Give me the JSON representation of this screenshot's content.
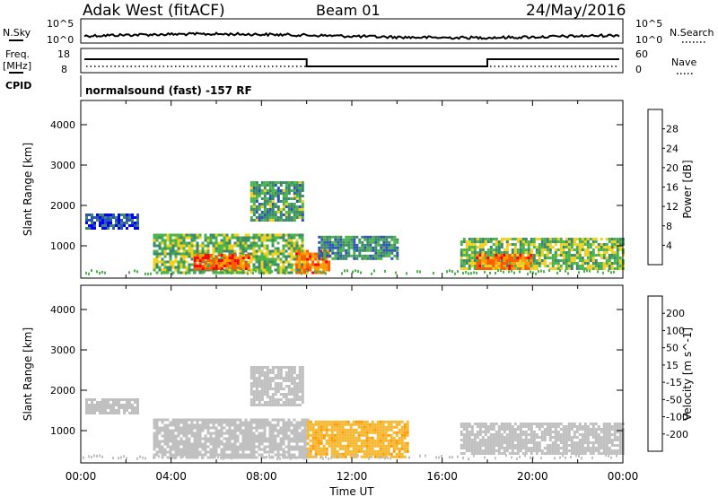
{
  "header": {
    "station": "Adak West (fitACF)",
    "beam": "Beam 01",
    "date": "24/May/2016"
  },
  "top_strip": {
    "nsky_label": "N.Sky",
    "nsearch_label": "N.Search",
    "nsky_ticks": [
      "10^5",
      "10^0"
    ],
    "nsearch_ticks": [
      "10^5",
      "10^0"
    ],
    "freq_label_line1": "Freq.",
    "freq_label_line2": "[MHz]",
    "freq_ticks": [
      "18",
      "8"
    ],
    "nave_label": "Nave",
    "nave_ticks": [
      "60",
      "0"
    ],
    "cpid_label": "CPID",
    "cpid_text": "normalsound (fast) -157 RF"
  },
  "colorbars": {
    "power": {
      "label": "Power [dB]",
      "ticks": [
        "4",
        "8",
        "12",
        "16",
        "20",
        "24",
        "28"
      ],
      "colors": [
        "#0000ff",
        "#2a55b5",
        "#3c8a6a",
        "#4cb24c",
        "#f0d020",
        "#ff9a00",
        "#ff5a00",
        "#ff0000"
      ]
    },
    "velocity": {
      "label": "Velocity [m s^-1]",
      "ticks": [
        "-200",
        "-100",
        "-50",
        "-15",
        "15",
        "50",
        "100",
        "200"
      ],
      "colors": [
        "#ff0000",
        "#ff6a00",
        "#ff9a00",
        "#f5b830",
        "#c0c0c0",
        "#c0c0c0",
        "#60c040",
        "#2a8a6a",
        "#2a55b5",
        "#0000ff"
      ]
    }
  },
  "x_axis": {
    "title": "Time UT",
    "ticks": [
      "00:00",
      "04:00",
      "08:00",
      "12:00",
      "16:00",
      "20:00",
      "00:00"
    ]
  },
  "chart_data": [
    {
      "type": "heatmap",
      "title": "",
      "xlabel": "Time UT",
      "ylabel": "Slant Range [km]",
      "y_ticks": [
        "1000",
        "2000",
        "3000",
        "4000"
      ],
      "xlim": [
        0,
        24
      ],
      "ylim": [
        200,
        4600
      ],
      "colorbar_label": "Power [dB]",
      "regions": [
        {
          "t0": 3.2,
          "t1": 9.8,
          "r0": 350,
          "r1": 1300,
          "value": 14
        },
        {
          "t0": 5.0,
          "t1": 7.5,
          "r0": 450,
          "r1": 800,
          "value": 26
        },
        {
          "t0": 9.5,
          "t1": 11.0,
          "r0": 350,
          "r1": 900,
          "value": 24
        },
        {
          "t0": 10.5,
          "t1": 14.0,
          "r0": 700,
          "r1": 1250,
          "value": 10
        },
        {
          "t0": 7.5,
          "t1": 9.8,
          "r0": 1600,
          "r1": 2600,
          "value": 12
        },
        {
          "t0": 0.2,
          "t1": 2.5,
          "r0": 1450,
          "r1": 1800,
          "value": 6
        },
        {
          "t0": 16.8,
          "t1": 24.0,
          "r0": 450,
          "r1": 1200,
          "value": 15
        },
        {
          "t0": 17.5,
          "t1": 20.0,
          "r0": 450,
          "r1": 800,
          "value": 24
        }
      ]
    },
    {
      "type": "heatmap",
      "title": "",
      "xlabel": "Time UT",
      "ylabel": "Slant Range [km]",
      "y_ticks": [
        "1000",
        "2000",
        "3000",
        "4000"
      ],
      "xlim": [
        0,
        24
      ],
      "ylim": [
        200,
        4600
      ],
      "colorbar_label": "Velocity [m s^-1]",
      "regions": [
        {
          "t0": 3.2,
          "t1": 10.0,
          "r0": 350,
          "r1": 1300,
          "value": 0
        },
        {
          "t0": 10.0,
          "t1": 14.5,
          "r0": 350,
          "r1": 1250,
          "value": -40
        },
        {
          "t0": 7.5,
          "t1": 9.8,
          "r0": 1600,
          "r1": 2600,
          "value": 0
        },
        {
          "t0": 16.8,
          "t1": 24.0,
          "r0": 450,
          "r1": 1200,
          "value": 0
        },
        {
          "t0": 0.2,
          "t1": 2.5,
          "r0": 1450,
          "r1": 1800,
          "value": 0
        }
      ]
    }
  ]
}
